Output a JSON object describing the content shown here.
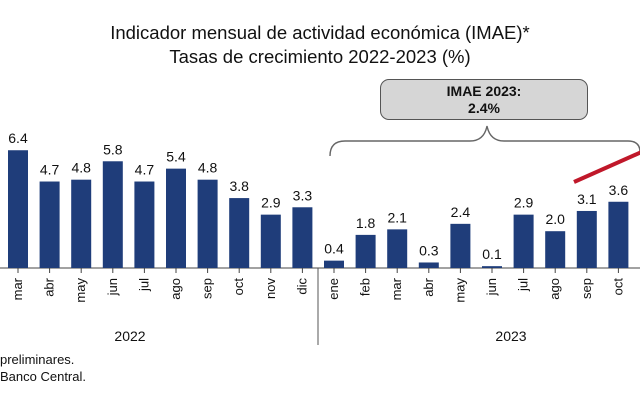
{
  "title": "Indicador mensual de actividad económica (IMAE)*",
  "subtitle": "Tasas de crecimiento 2022-2023 (%)",
  "callout": {
    "line1": "IMAE 2023:",
    "line2": "2.4%"
  },
  "notes": [
    "preliminares.",
    "Banco Central."
  ],
  "colors": {
    "bar": "#1f3d7a",
    "trend": "#c0182a",
    "callout_bg": "#d6d6d6"
  },
  "chart_data": {
    "type": "bar",
    "title": "Indicador mensual de actividad económica (IMAE)*",
    "subtitle": "Tasas de crecimiento 2022-2023 (%)",
    "categories": [
      "mar",
      "abr",
      "may",
      "jun",
      "jul",
      "ago",
      "sep",
      "oct",
      "nov",
      "dic",
      "ene",
      "feb",
      "mar",
      "abr",
      "may",
      "jun",
      "jul",
      "ago",
      "sep",
      "oct"
    ],
    "values": [
      6.4,
      4.7,
      4.8,
      5.8,
      4.7,
      5.4,
      4.8,
      3.8,
      2.9,
      3.3,
      0.4,
      1.8,
      2.1,
      0.3,
      2.4,
      0.1,
      2.9,
      2.0,
      3.1,
      3.6
    ],
    "labels": [
      "6.4",
      "4.7",
      "4.8",
      "5.8",
      "4.7",
      "5.4",
      "4.8",
      "3.8",
      "2.9",
      "3.3",
      "0.4",
      "1.8",
      "2.1",
      "0.3",
      "2.4",
      "0.1",
      "2.9",
      "2.0",
      "3.1",
      "3.6"
    ],
    "groups": [
      {
        "label": "2022",
        "start": 0,
        "end": 9
      },
      {
        "label": "2023",
        "start": 10,
        "end": 19
      }
    ],
    "ylim": [
      0,
      7
    ],
    "grid": false,
    "xlabel": "",
    "ylabel": ""
  }
}
